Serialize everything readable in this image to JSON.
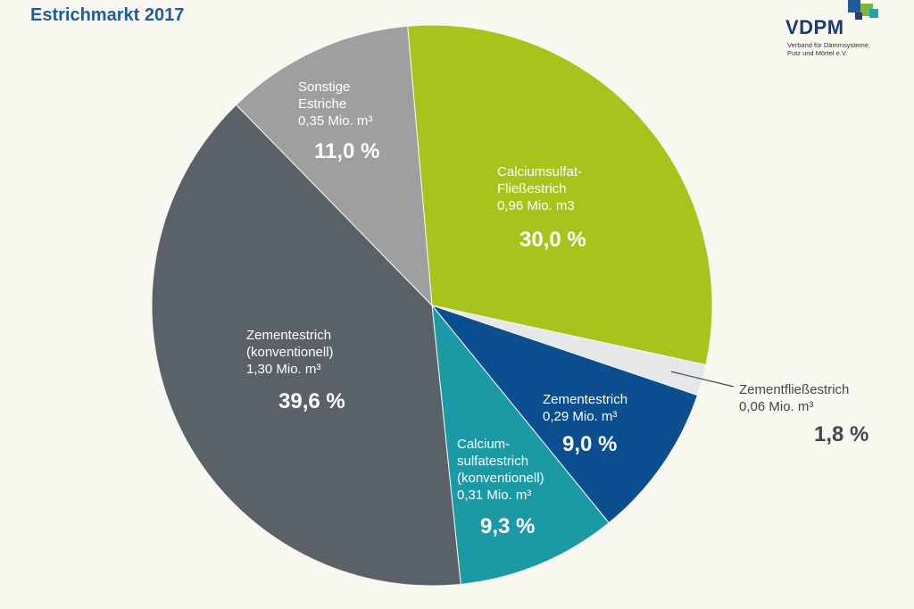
{
  "header": {
    "title": "Estrichmarkt 2017"
  },
  "logo": {
    "name": "VDPM",
    "subtitle_lines": [
      "Verband für Dämmsysteme,",
      "Putz und Mörtel e.V."
    ]
  },
  "chart_data": {
    "type": "pie",
    "title": "Estrichmarkt 2017",
    "unit": "Mio. m³",
    "start_angle_deg": -5,
    "direction": "clockwise",
    "slices": [
      {
        "key": "calciumsulfat-fliess",
        "label_lines": [
          "Calciumsulfat-",
          "Fließestrich",
          "0,96 Mio. m3"
        ],
        "volume_text": "0,96 Mio. m3",
        "volume": 0.96,
        "percent": 30.0,
        "percent_text": "30,0 %",
        "color": "#a8c41c"
      },
      {
        "key": "zementfliess",
        "label_lines": [
          "Zementfließestrich",
          "0,06 Mio. m³"
        ],
        "volume_text": "0,06 Mio. m³",
        "volume": 0.06,
        "percent": 1.8,
        "percent_text": "1,8 %",
        "color": "#e6e7e8",
        "label_outside": true
      },
      {
        "key": "zementestrich",
        "label_lines": [
          "Zementestrich",
          "0,29 Mio. m³"
        ],
        "volume_text": "0,29 Mio. m³",
        "volume": 0.29,
        "percent": 9.0,
        "percent_text": "9,0 %",
        "color": "#0b4f91"
      },
      {
        "key": "calciumsulfat-konv",
        "label_lines": [
          "Calcium-",
          "sulfatestrich",
          "(konventionell)",
          "0,31 Mio. m³"
        ],
        "volume_text": "0,31 Mio. m³",
        "volume": 0.31,
        "percent": 9.3,
        "percent_text": "9,3 %",
        "color": "#1b9aa6"
      },
      {
        "key": "zement-konv",
        "label_lines": [
          "Zementestrich",
          "(konventionell)",
          "1,30 Mio. m³"
        ],
        "volume_text": "1,30 Mio. m³",
        "volume": 1.3,
        "percent": 39.6,
        "percent_text": "39,6 %",
        "color": "#5b6168"
      },
      {
        "key": "sonstige",
        "label_lines": [
          "Sonstige",
          "Estriche",
          "0,35 Mio. m³"
        ],
        "volume_text": "0,35 Mio. m³",
        "volume": 0.35,
        "percent": 11.0,
        "percent_text": "11,0 %",
        "color": "#9d9fa1"
      }
    ]
  }
}
